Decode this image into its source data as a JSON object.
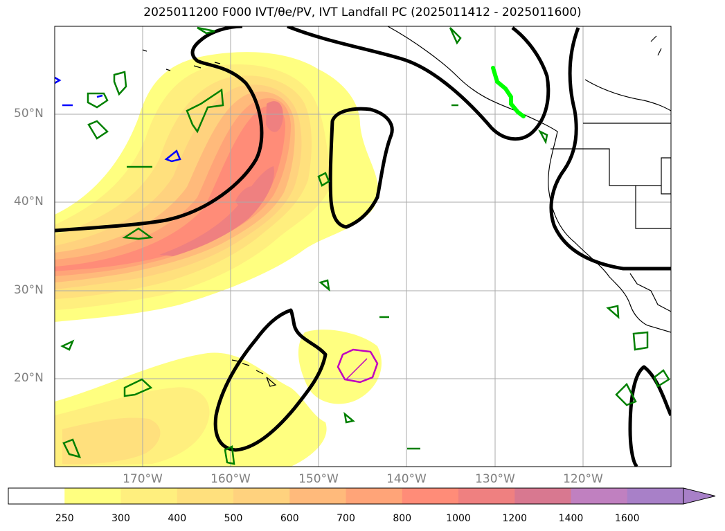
{
  "title": "2025011200 F000 IVT/θe/PV, IVT Landfall PC (2025011412 - 2025011600)",
  "map": {
    "projection": "plate-carree",
    "lon_range": [
      -180,
      -110
    ],
    "lat_range": [
      10,
      60
    ],
    "lat_ticks": [
      "50°N",
      "40°N",
      "30°N",
      "20°N"
    ],
    "lon_ticks": [
      "170°W",
      "160°W",
      "150°W",
      "140°W",
      "130°W",
      "120°W"
    ],
    "grid": true,
    "colors": {
      "ivt_250": "#ffff80",
      "ivt_300": "#ffef7e",
      "ivt_400": "#ffe07d",
      "ivt_500": "#ffd27e",
      "ivt_600": "#ffba7b",
      "ivt_700": "#ffa478",
      "ivt_800": "#ff8c78",
      "ivt_1000": "#ef8080",
      "theta_e_contour": "#000000",
      "pv_contour": "#008000",
      "landfall_pc": "#00ff00",
      "blue_contour": "#0000ff",
      "magenta_contour": "#c000c0",
      "coastline": "#000000"
    }
  },
  "colorbar": {
    "levels": [
      "250",
      "300",
      "400",
      "500",
      "600",
      "700",
      "800",
      "1000",
      "1200",
      "1400",
      "1600"
    ],
    "colors": [
      "#ffffff",
      "#ffff80",
      "#ffef7e",
      "#ffe07d",
      "#ffd27e",
      "#ffba7b",
      "#ffa478",
      "#ff8c78",
      "#ef8080",
      "#d87890",
      "#c080c0",
      "#a880c8"
    ],
    "extend": "max"
  }
}
